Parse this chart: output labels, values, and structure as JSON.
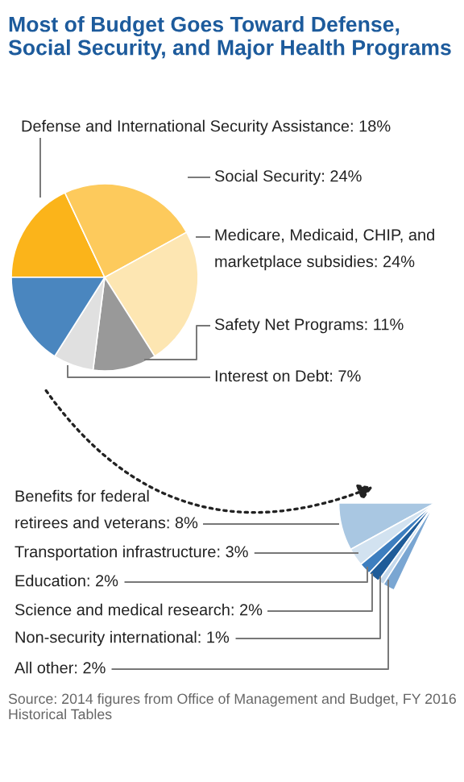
{
  "chart_data": [
    {
      "type": "pie",
      "title": "Most of Budget Goes Toward Defense, Social Security, and Major Health Programs",
      "categories": [
        "Defense and International Security Assistance",
        "Social Security",
        "Medicare, Medicaid, CHIP, and\nmarketplace subsidies",
        "Safety Net Programs",
        "Interest on Debt",
        null
      ],
      "values": [
        18,
        24,
        24,
        11,
        7,
        16
      ],
      "colors": [
        "#fbb41a",
        "#fdca5c",
        "#fde6b2",
        "#999999",
        "#e0e0e0",
        "#4a86bf"
      ],
      "value_labels": [
        "18%",
        "24%",
        "24%",
        "11%",
        "7%",
        null
      ]
    },
    {
      "type": "pie",
      "categories": [
        "Benefits for federal\nretirees and veterans",
        "Transportation infrastructure",
        "Education",
        "Science and medical research",
        "Non-security international",
        "All other"
      ],
      "values": [
        8,
        3,
        2,
        2,
        1,
        2
      ],
      "colors": [
        "#a9c7e2",
        "#d2e2f0",
        "#3d7ebf",
        "#1f5c99",
        "#c5d9ec",
        "#7aa6d2"
      ],
      "value_labels": [
        "8%",
        "3%",
        "2%",
        "2%",
        "1%",
        "2%"
      ],
      "annotations": [
        "Source: 2014 figures from Office of Management and Budget, FY 2016 Historical Tables"
      ]
    }
  ]
}
